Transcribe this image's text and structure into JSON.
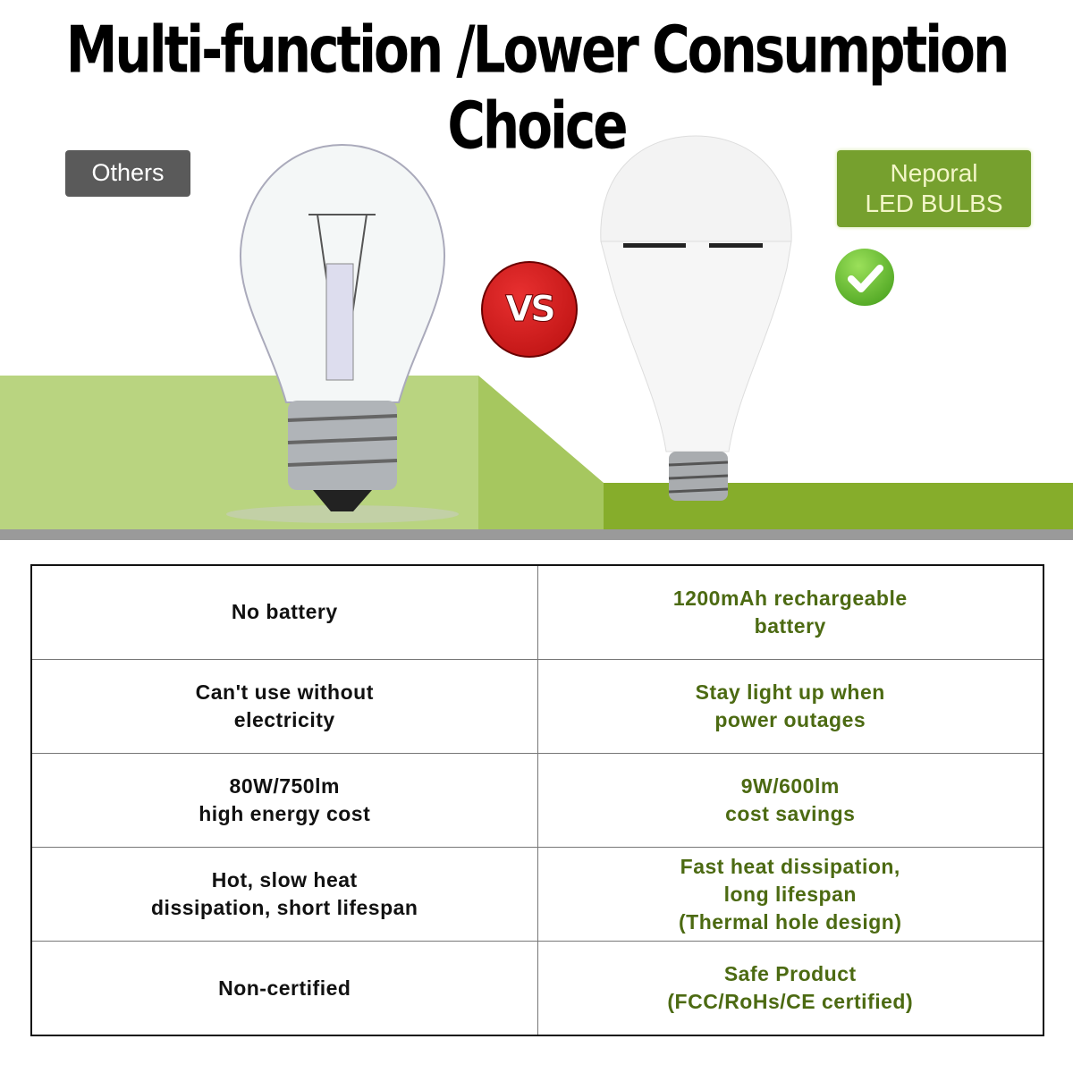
{
  "title": "Multi-function /Lower Consumption Choice",
  "left_label": "Others",
  "right_label": [
    "Neporal",
    "LED BULBS"
  ],
  "vs_label": "VS",
  "colors": {
    "accent_green": "#76a02e",
    "floor_green": "#86ad2b",
    "vs_red": "#d41f1f",
    "label_gray": "#5a5a5a",
    "right_text": "#4c6a12"
  },
  "icons": [
    "incandescent-bulb",
    "led-bulb",
    "check-icon",
    "vs-badge"
  ],
  "comparison": [
    {
      "others": [
        "No battery"
      ],
      "neporal": [
        "1200mAh rechargeable",
        "battery"
      ]
    },
    {
      "others": [
        "Can't use without",
        "electricity"
      ],
      "neporal": [
        "Stay light up when",
        "power outages"
      ]
    },
    {
      "others": [
        "80W/750lm",
        "high energy cost"
      ],
      "neporal": [
        "9W/600lm",
        "cost savings"
      ]
    },
    {
      "others": [
        "Hot, slow heat",
        "dissipation, short lifespan"
      ],
      "neporal": [
        "Fast heat dissipation,",
        "long lifespan",
        "(Thermal hole design)"
      ]
    },
    {
      "others": [
        "Non-certified"
      ],
      "neporal": [
        "Safe Product",
        "(FCC/RoHs/CE certified)"
      ]
    }
  ]
}
